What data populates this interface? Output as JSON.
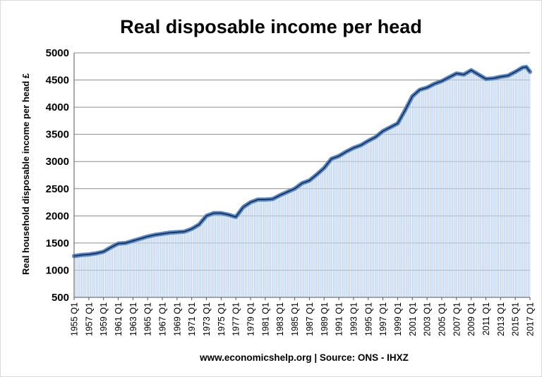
{
  "chart_data": {
    "type": "area",
    "title": "Real disposable income per head",
    "xlabel": "www.economicshelp.org | Source: ONS - IHXZ",
    "ylabel": "Real household disposable income per head £",
    "ylim": [
      500,
      5000
    ],
    "yticks": [
      500,
      1000,
      1500,
      2000,
      2500,
      3000,
      3500,
      4000,
      4500,
      5000
    ],
    "grid": true,
    "legend": "none",
    "x_tick_labels": [
      "1955 Q1",
      "1957 Q1",
      "1959 Q1",
      "1961 Q1",
      "1963 Q1",
      "1965 Q1",
      "1967 Q1",
      "1969 Q1",
      "1971 Q1",
      "1973 Q1",
      "1975 Q1",
      "1977 Q1",
      "1979 Q1",
      "1981 Q1",
      "1983 Q1",
      "1985 Q1",
      "1987 Q1",
      "1989 Q1",
      "1991 Q1",
      "1993 Q1",
      "1995 Q1",
      "1997 Q1",
      "1999 Q1",
      "2001 Q1",
      "2003 Q1",
      "2005 Q1",
      "2007 Q1",
      "2009 Q1",
      "2011 Q1",
      "2013 Q1",
      "2015 Q1",
      "2017 Q1"
    ],
    "x_range": [
      "1955 Q1",
      "2017 Q1"
    ],
    "series": [
      {
        "frequency": "quarterly",
        "x": [
          "1955 Q1",
          "1956 Q1",
          "1957 Q1",
          "1958 Q1",
          "1959 Q1",
          "1960 Q1",
          "1961 Q1",
          "1962 Q1",
          "1963 Q1",
          "1964 Q1",
          "1965 Q1",
          "1966 Q1",
          "1967 Q1",
          "1968 Q1",
          "1969 Q1",
          "1970 Q1",
          "1971 Q1",
          "1972 Q1",
          "1973 Q1",
          "1974 Q1",
          "1975 Q1",
          "1976 Q1",
          "1977 Q1",
          "1978 Q1",
          "1979 Q1",
          "1980 Q1",
          "1981 Q1",
          "1982 Q1",
          "1983 Q1",
          "1984 Q1",
          "1985 Q1",
          "1986 Q1",
          "1987 Q1",
          "1988 Q1",
          "1989 Q1",
          "1990 Q1",
          "1991 Q1",
          "1992 Q1",
          "1993 Q1",
          "1994 Q1",
          "1995 Q1",
          "1996 Q1",
          "1997 Q1",
          "1998 Q1",
          "1999 Q1",
          "2000 Q1",
          "2001 Q1",
          "2002 Q1",
          "2003 Q1",
          "2004 Q1",
          "2005 Q1",
          "2006 Q1",
          "2007 Q1",
          "2008 Q1",
          "2009 Q1",
          "2010 Q1",
          "2011 Q1",
          "2012 Q1",
          "2013 Q1",
          "2014 Q1",
          "2015 Q1",
          "2016 Q1",
          "2016 Q3",
          "2017 Q1"
        ],
        "y": [
          1260,
          1280,
          1290,
          1310,
          1340,
          1420,
          1490,
          1500,
          1540,
          1580,
          1620,
          1650,
          1670,
          1690,
          1700,
          1710,
          1760,
          1840,
          2000,
          2050,
          2050,
          2020,
          1980,
          2160,
          2250,
          2300,
          2300,
          2310,
          2380,
          2440,
          2500,
          2600,
          2650,
          2760,
          2880,
          3050,
          3100,
          3180,
          3250,
          3300,
          3380,
          3450,
          3560,
          3630,
          3700,
          3940,
          4200,
          4320,
          4360,
          4430,
          4480,
          4550,
          4620,
          4600,
          4680,
          4600,
          4520,
          4530,
          4560,
          4580,
          4650,
          4730,
          4740,
          4650
        ],
        "line_color": "#0d2a54",
        "marker_color": "#5e88c2",
        "fill_color": "#cfe0f3"
      }
    ]
  }
}
